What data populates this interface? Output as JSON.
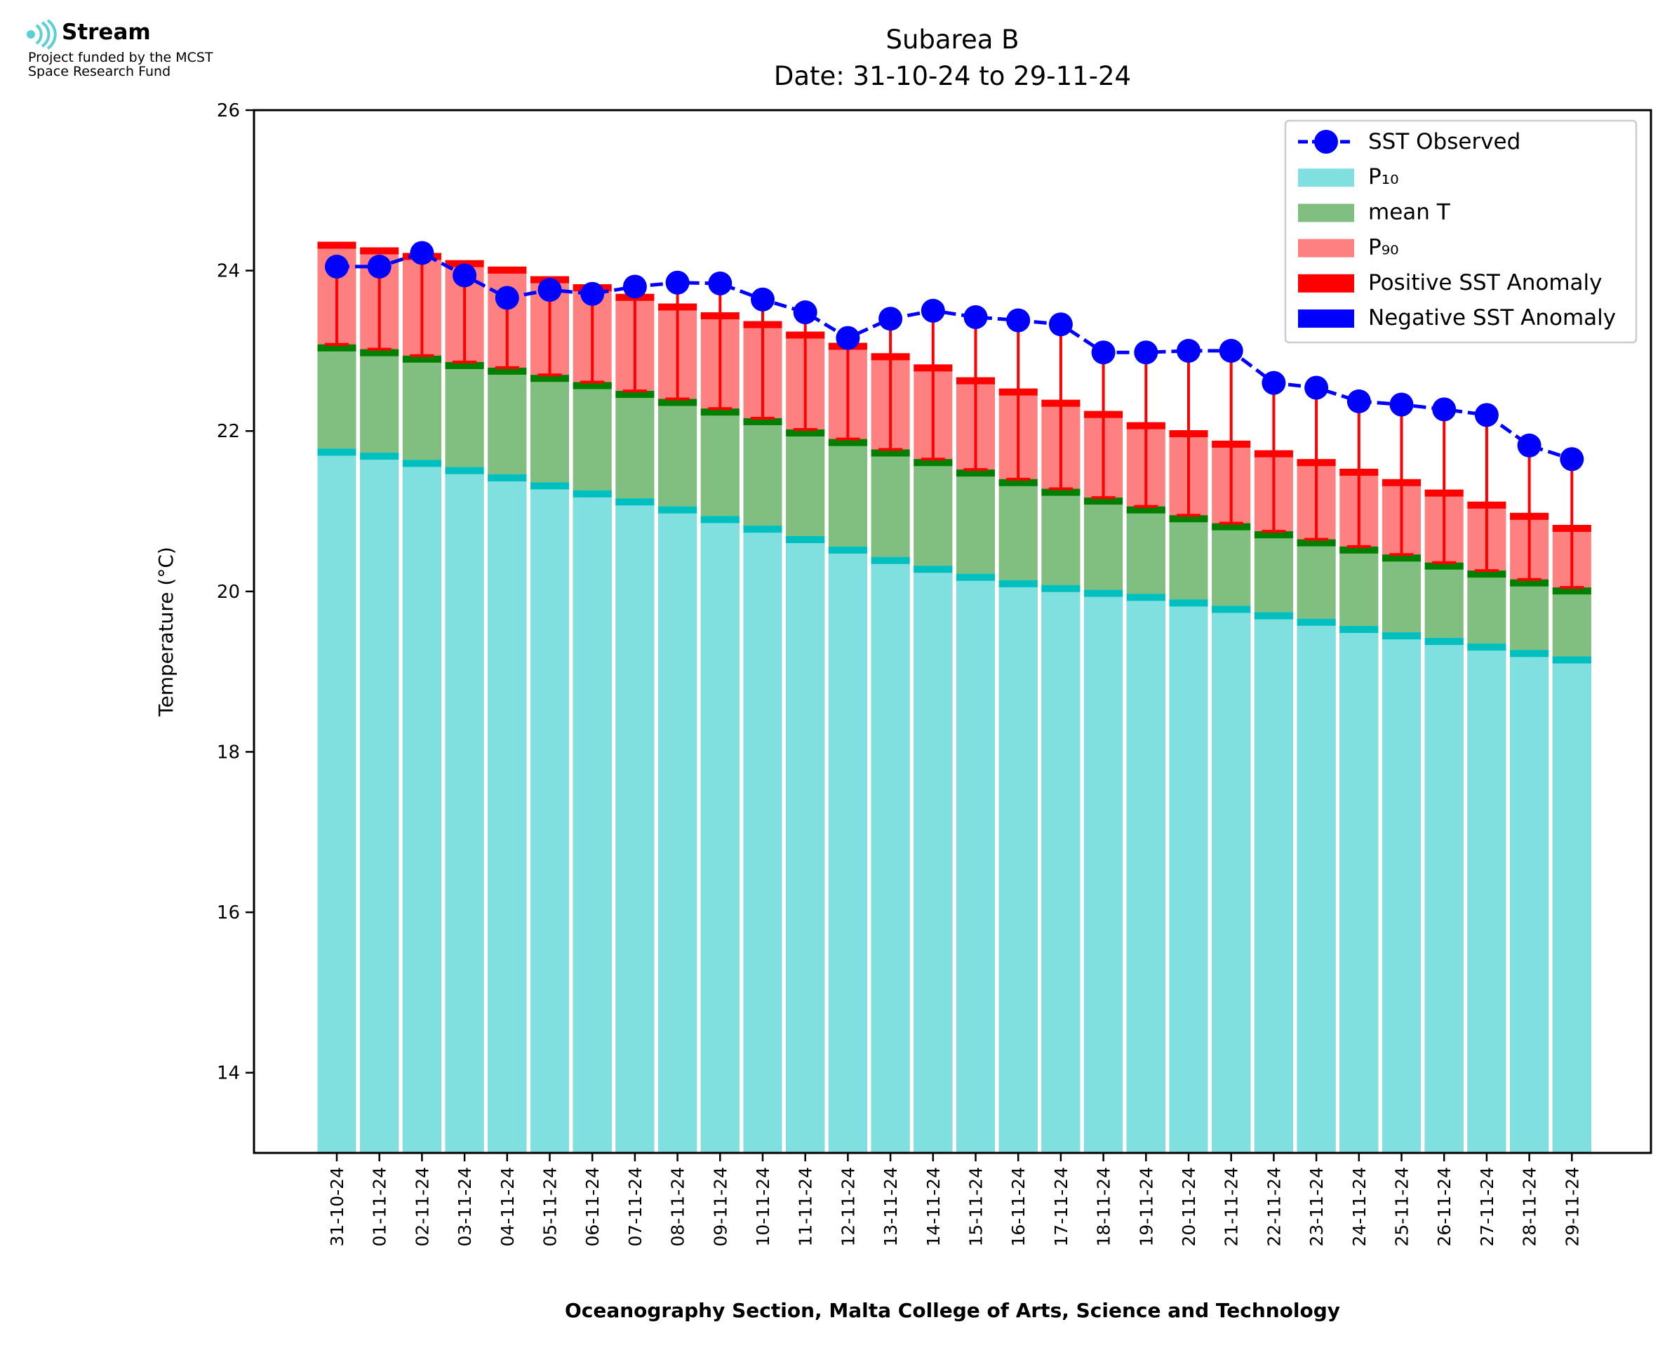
{
  "logo": {
    "name": "Stream",
    "line1": "Project funded by the MCST",
    "line2": "Space Research Fund",
    "icon": "stream-logo-icon"
  },
  "chart_data": {
    "type": "bar",
    "title": "Subarea B",
    "subtitle": "Date: 31-10-24 to 29-11-24",
    "ylabel": "Temperature (°C)",
    "xlabel": "Oceanography Section, Malta College of Arts, Science and Technology",
    "ylim": [
      13,
      26
    ],
    "yticks": [
      14,
      16,
      18,
      20,
      22,
      24,
      26
    ],
    "categories": [
      "31-10-24",
      "01-11-24",
      "02-11-24",
      "03-11-24",
      "04-11-24",
      "05-11-24",
      "06-11-24",
      "07-11-24",
      "08-11-24",
      "09-11-24",
      "10-11-24",
      "11-11-24",
      "12-11-24",
      "13-11-24",
      "14-11-24",
      "15-11-24",
      "16-11-24",
      "17-11-24",
      "18-11-24",
      "19-11-24",
      "20-11-24",
      "21-11-24",
      "22-11-24",
      "23-11-24",
      "24-11-24",
      "25-11-24",
      "26-11-24",
      "27-11-24",
      "28-11-24",
      "29-11-24"
    ],
    "series": [
      {
        "name": "SST Observed",
        "kind": "line",
        "color": "#0000ff",
        "values": [
          24.05,
          24.05,
          24.22,
          23.94,
          23.66,
          23.76,
          23.71,
          23.8,
          23.85,
          23.84,
          23.64,
          23.48,
          23.16,
          23.4,
          23.5,
          23.42,
          23.38,
          23.33,
          22.98,
          22.98,
          23.0,
          23.0,
          22.6,
          22.54,
          22.37,
          22.33,
          22.27,
          22.2,
          21.82,
          21.65
        ]
      },
      {
        "name": "P₁₀",
        "kind": "bar",
        "color": "#80dfdf",
        "edge": "#00bfbf",
        "values": [
          21.78,
          21.73,
          21.64,
          21.55,
          21.46,
          21.36,
          21.26,
          21.16,
          21.06,
          20.94,
          20.82,
          20.69,
          20.56,
          20.43,
          20.32,
          20.22,
          20.14,
          20.08,
          20.02,
          19.97,
          19.9,
          19.82,
          19.74,
          19.66,
          19.57,
          19.49,
          19.42,
          19.35,
          19.27,
          19.19
        ]
      },
      {
        "name": "mean T",
        "kind": "bar",
        "color": "#80bf80",
        "edge": "#007f00",
        "values": [
          23.08,
          23.02,
          22.94,
          22.86,
          22.79,
          22.7,
          22.61,
          22.5,
          22.4,
          22.28,
          22.16,
          22.02,
          21.9,
          21.77,
          21.65,
          21.52,
          21.4,
          21.28,
          21.17,
          21.06,
          20.95,
          20.85,
          20.75,
          20.65,
          20.56,
          20.46,
          20.36,
          20.26,
          20.15,
          20.05
        ]
      },
      {
        "name": "P₉₀",
        "kind": "bar",
        "color": "#ff8080",
        "edge": "#ff0000",
        "values": [
          24.36,
          24.29,
          24.22,
          24.13,
          24.05,
          23.93,
          23.83,
          23.71,
          23.59,
          23.48,
          23.37,
          23.24,
          23.1,
          22.97,
          22.83,
          22.67,
          22.53,
          22.39,
          22.25,
          22.11,
          22.01,
          21.88,
          21.76,
          21.65,
          21.53,
          21.4,
          21.27,
          21.12,
          20.98,
          20.83
        ]
      },
      {
        "name": "Positive SST Anomaly",
        "kind": "anomaly",
        "color": "#ff0000"
      },
      {
        "name": "Negative SST Anomaly",
        "kind": "anomaly",
        "color": "#0000ff"
      }
    ],
    "legend": {
      "position": "top-right"
    },
    "grid": false
  }
}
